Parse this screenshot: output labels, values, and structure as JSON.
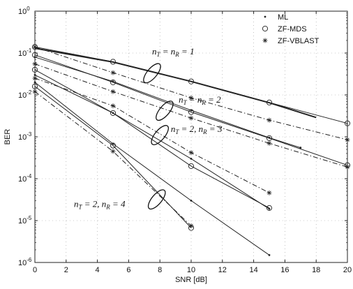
{
  "chart_data": {
    "type": "line",
    "title": "",
    "xlabel": "SNR [dB]",
    "ylabel": "BER",
    "xlim": [
      0,
      20
    ],
    "ylim": [
      1e-06,
      1
    ],
    "yscale": "log",
    "xticks": [
      0,
      2,
      4,
      6,
      8,
      10,
      12,
      14,
      16,
      18,
      20
    ],
    "xtick_labels": [
      "0",
      "2",
      "4",
      "6",
      "8",
      "10",
      "12",
      "14",
      "16",
      "18",
      "20"
    ],
    "yticks": [
      1,
      0.1,
      0.01,
      0.001,
      0.0001,
      1e-05,
      1e-06
    ],
    "ytick_labels": [
      {
        "base": "10",
        "exp": "0"
      },
      {
        "base": "10",
        "exp": "-1"
      },
      {
        "base": "10",
        "exp": "-2"
      },
      {
        "base": "10",
        "exp": "-3"
      },
      {
        "base": "10",
        "exp": "-4"
      },
      {
        "base": "10",
        "exp": "-5"
      },
      {
        "base": "10",
        "exp": "-6"
      }
    ],
    "grid": true,
    "legend_position": "top-right",
    "legend": [
      {
        "label": "ML",
        "marker": "dot",
        "linestyle": "solid"
      },
      {
        "label": "ZF-MDS",
        "marker": "circle",
        "linestyle": "solid"
      },
      {
        "label": "ZF-VBLAST",
        "marker": "star",
        "linestyle": "dashdot"
      }
    ],
    "series": [
      {
        "group": "nT=nR=1",
        "scheme": "ML",
        "x": [
          0,
          5,
          10,
          15,
          18
        ],
        "y": [
          0.13,
          0.061,
          0.021,
          0.0065,
          0.0029
        ],
        "marker": "none",
        "linestyle": "solid",
        "width": 2.0
      },
      {
        "group": "nT=nR=1",
        "scheme": "ZF-MDS",
        "x": [
          0,
          5,
          10,
          15,
          20
        ],
        "y": [
          0.14,
          0.062,
          0.021,
          0.0066,
          0.0021
        ],
        "marker": "circle",
        "linestyle": "solid",
        "width": 1.0
      },
      {
        "group": "nT=nR=1",
        "scheme": "ZF-VBLAST",
        "x": [
          0,
          5,
          10,
          15,
          20
        ],
        "y": [
          0.14,
          0.034,
          0.0085,
          0.0025,
          0.00085
        ],
        "marker": "star",
        "linestyle": "dashdot",
        "width": 1.0
      },
      {
        "group": "nT=nR=2",
        "scheme": "ML",
        "x": [
          0,
          5,
          10,
          15,
          17
        ],
        "y": [
          0.08,
          0.021,
          0.0043,
          0.00095,
          0.00055
        ],
        "marker": "dot",
        "linestyle": "solid",
        "width": 1.0
      },
      {
        "group": "nT=nR=2",
        "scheme": "ZF-MDS",
        "x": [
          0,
          5,
          10,
          15,
          20
        ],
        "y": [
          0.09,
          0.02,
          0.0039,
          0.00093,
          0.00021
        ],
        "marker": "circle",
        "linestyle": "solid",
        "width": 1.0
      },
      {
        "group": "nT=nR=2",
        "scheme": "ZF-VBLAST",
        "x": [
          0,
          5,
          10,
          15,
          20
        ],
        "y": [
          0.055,
          0.012,
          0.0028,
          0.0007,
          0.00019
        ],
        "marker": "star",
        "linestyle": "dashdot",
        "width": 1.0
      },
      {
        "group": "nT=2,nR=3",
        "scheme": "ML",
        "x": [
          0,
          5,
          10,
          15
        ],
        "y": [
          0.03,
          0.0037,
          0.0003,
          1.9e-05
        ],
        "marker": "dot",
        "linestyle": "solid",
        "width": 1.0
      },
      {
        "group": "nT=2,nR=3",
        "scheme": "ZF-MDS",
        "x": [
          0,
          5,
          10,
          15
        ],
        "y": [
          0.04,
          0.0037,
          0.0002,
          2e-05
        ],
        "marker": "circle",
        "linestyle": "solid",
        "width": 1.0
      },
      {
        "group": "nT=2,nR=3",
        "scheme": "ZF-VBLAST",
        "x": [
          0,
          5,
          10,
          15
        ],
        "y": [
          0.025,
          0.0055,
          0.00042,
          4.6e-05
        ],
        "marker": "star",
        "linestyle": "dashdot",
        "width": 1.0
      },
      {
        "group": "nT=2,nR=4",
        "scheme": "ML",
        "x": [
          0,
          5,
          10,
          15
        ],
        "y": [
          0.02,
          0.00068,
          3e-05,
          1.5e-06
        ],
        "marker": "dot",
        "linestyle": "solid",
        "width": 1.0
      },
      {
        "group": "nT=2,nR=4",
        "scheme": "ZF-MDS",
        "x": [
          0,
          5,
          10
        ],
        "y": [
          0.016,
          0.00062,
          6.7e-06
        ],
        "marker": "circle",
        "linestyle": "solid",
        "width": 1.0
      },
      {
        "group": "nT=2,nR=4",
        "scheme": "ZF-VBLAST",
        "x": [
          0,
          5,
          10
        ],
        "y": [
          0.012,
          0.00045,
          7.5e-06
        ],
        "marker": "star",
        "linestyle": "dashdot",
        "width": 1.0
      }
    ],
    "annotations": [
      {
        "label_main": [
          "n",
          "T",
          " = n",
          "R",
          " = 1"
        ],
        "x": 7.5,
        "y": 0.093,
        "ellipse": {
          "x": 7.5,
          "y": 0.033
        }
      },
      {
        "label_main": [
          "n",
          "T",
          " = n",
          "R",
          " = 2"
        ],
        "x": 9.2,
        "y": 0.0066,
        "ellipse": {
          "x": 8.3,
          "y": 0.0042
        }
      },
      {
        "label_main": [
          "n",
          "T",
          " = 2, n",
          "R",
          " = 3"
        ],
        "x": 8.7,
        "y": 0.0013,
        "ellipse": {
          "x": 8.0,
          "y": 0.0011
        }
      },
      {
        "label_main": [
          "n",
          "T",
          " = 2, n",
          "R",
          " = 4"
        ],
        "x": 2.5,
        "y": 2.1e-05,
        "ellipse": {
          "x": 7.8,
          "y": 3.2e-05
        }
      }
    ]
  }
}
